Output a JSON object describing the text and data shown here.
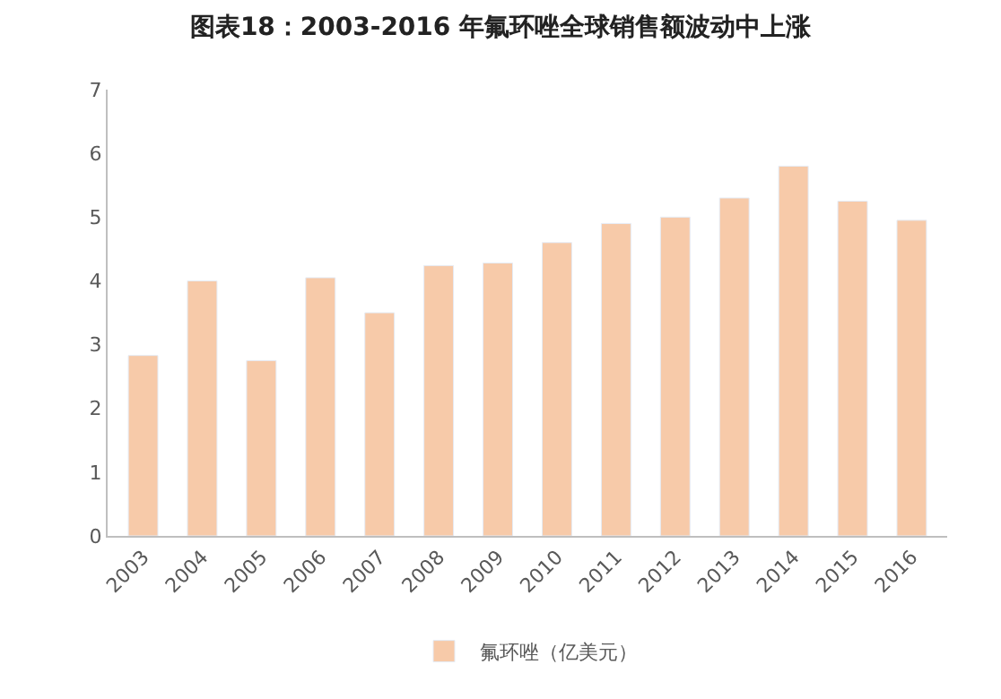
{
  "chart_data": {
    "type": "bar",
    "title": "图表18：2003-2016 年氟环唑全球销售额波动中上涨",
    "categories": [
      "2003",
      "2004",
      "2005",
      "2006",
      "2007",
      "2008",
      "2009",
      "2010",
      "2011",
      "2012",
      "2013",
      "2014",
      "2015",
      "2016"
    ],
    "series": [
      {
        "name": "氟环唑（亿美元）",
        "color": "#f7caa9",
        "values": [
          2.83,
          4.0,
          2.75,
          4.05,
          3.5,
          4.24,
          4.28,
          4.6,
          4.9,
          5.0,
          5.3,
          5.8,
          5.25,
          4.95
        ]
      }
    ],
    "ylim": [
      0,
      7
    ],
    "yticks": [
      0,
      1,
      2,
      3,
      4,
      5,
      6,
      7
    ],
    "legend": "bottom"
  }
}
